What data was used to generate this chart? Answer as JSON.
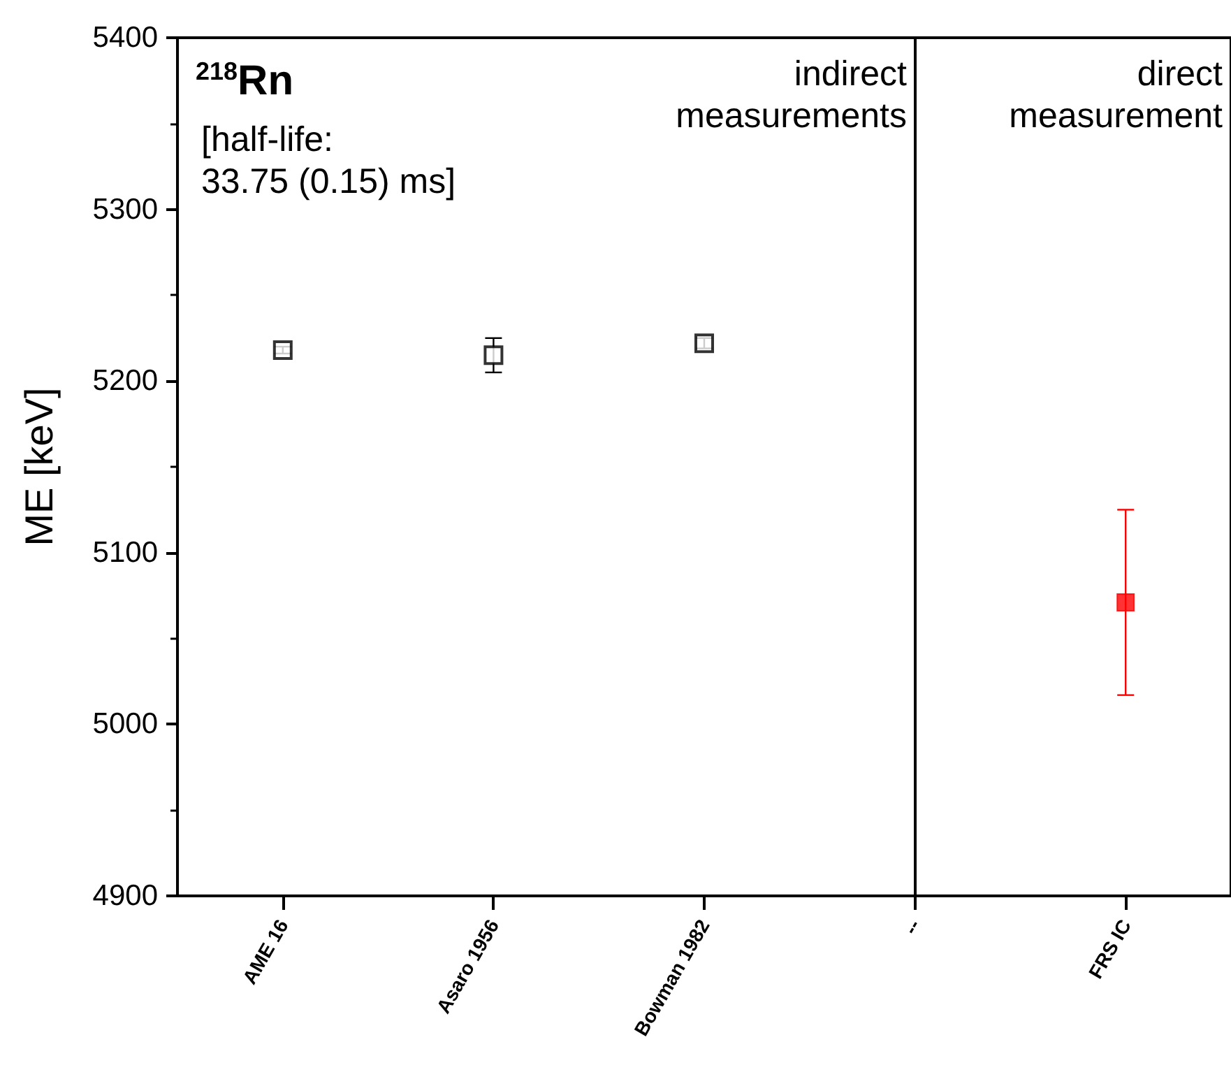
{
  "chart_data": {
    "type": "scatter",
    "title": "$^{218}$Rn",
    "ylabel": "ME [keV]",
    "annotations": [
      "[half-life:\n33.75 (0.15) ms]",
      "indirect\nmeasurements",
      "direct\nmeasurement"
    ],
    "categories": [
      "AME 16",
      "Asaro 1956",
      "Bowman 1982",
      "--",
      "FRS IC"
    ],
    "series": [
      {
        "color": "#000000",
        "marker": "square",
        "values": [
          5218,
          5215,
          5222,
          null,
          null
        ],
        "errors": [
          2,
          10,
          3,
          null,
          null
        ]
      },
      {
        "color": "#ff0000",
        "marker": "square",
        "values": [
          null,
          null,
          null,
          null,
          5071
        ],
        "errors": [
          null,
          null,
          null,
          null,
          54
        ]
      }
    ],
    "ylim": [
      4900,
      5400
    ],
    "yticks": [
      4900,
      5000,
      5100,
      5200,
      5300,
      5400
    ],
    "ref_lines": [
      {
        "axis": "x",
        "value": "--",
        "color": "#000000"
      }
    ],
    "grid": false
  }
}
